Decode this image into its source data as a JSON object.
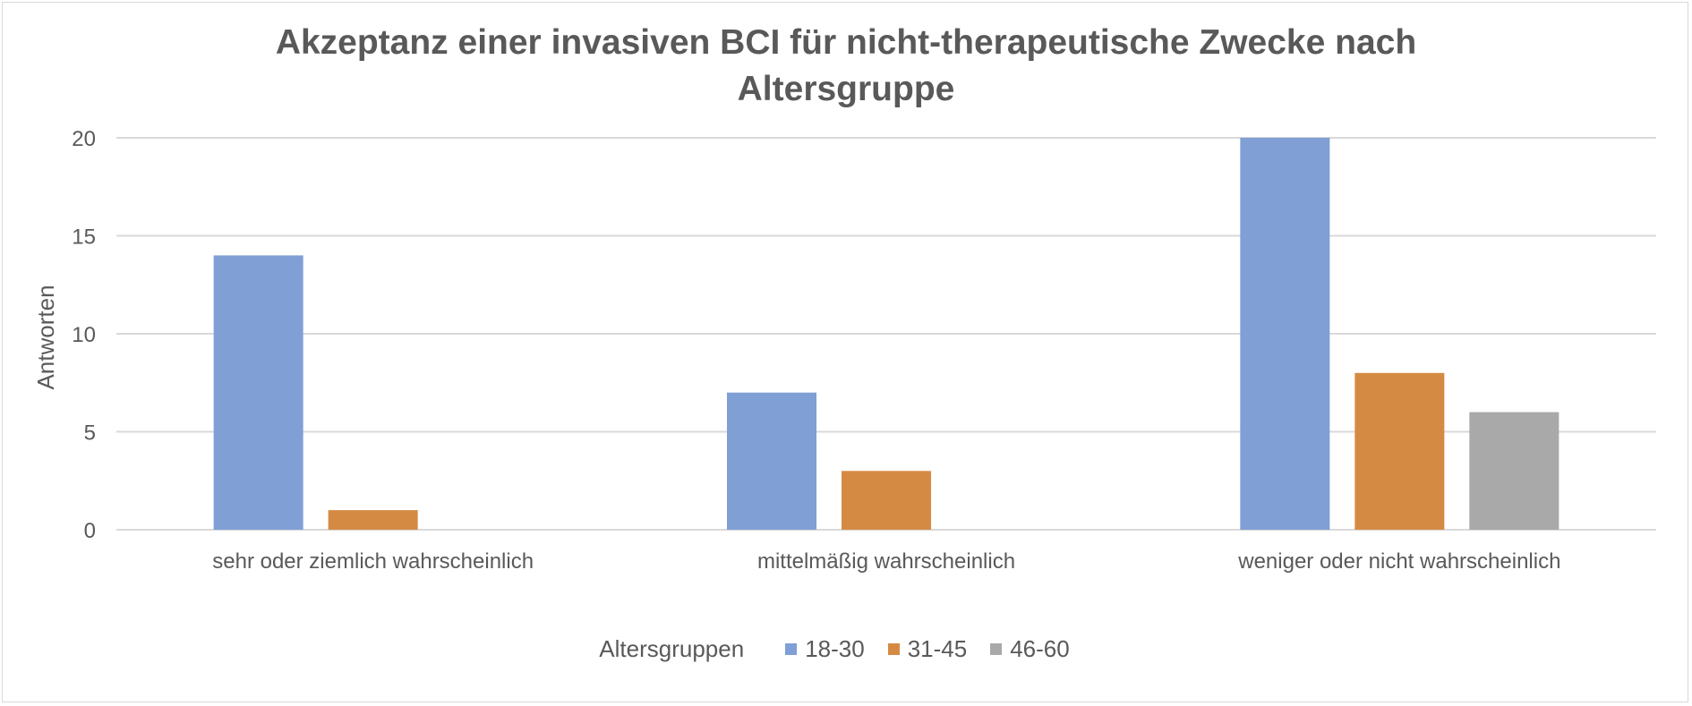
{
  "chart_data": {
    "type": "bar",
    "title_lines": [
      "Akzeptanz einer invasiven BCI für nicht-therapeutische Zwecke nach",
      "Altersgruppe"
    ],
    "xlabel": "",
    "ylabel": "Antworten",
    "ylim": [
      0,
      20
    ],
    "yticks": [
      0,
      5,
      10,
      15,
      20
    ],
    "grid": true,
    "categories": [
      "sehr oder ziemlich wahrscheinlich",
      "mittelmäßig wahrscheinlich",
      "weniger oder nicht wahrscheinlich"
    ],
    "legend_title": "Altersgruppen",
    "legend_position": "bottom",
    "series": [
      {
        "name": "18-30",
        "color": "#7f9fd5",
        "values": [
          14,
          7,
          20
        ]
      },
      {
        "name": "31-45",
        "color": "#d58a43",
        "values": [
          1,
          3,
          8
        ]
      },
      {
        "name": "46-60",
        "color": "#a9a9a9",
        "values": [
          0,
          0,
          6
        ]
      }
    ]
  }
}
